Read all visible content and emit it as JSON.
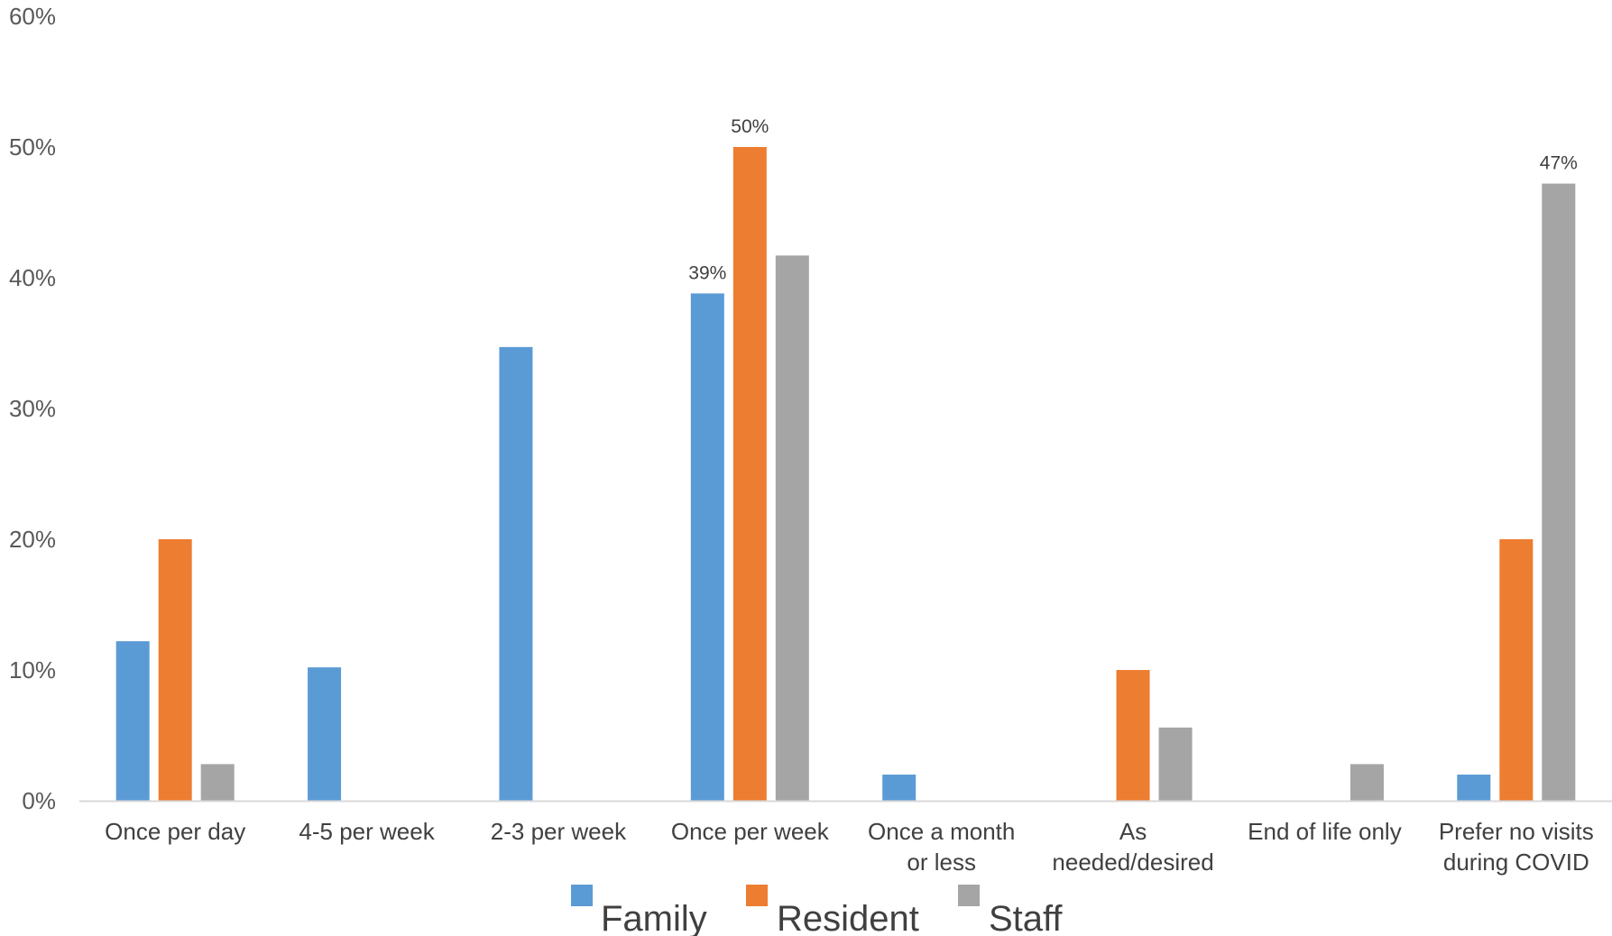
{
  "chart_data": {
    "type": "bar",
    "categories": [
      [
        "Once per day"
      ],
      [
        "4-5 per week"
      ],
      [
        "2-3 per week"
      ],
      [
        "Once per week"
      ],
      [
        "Once a month",
        "or less"
      ],
      [
        "As",
        "needed/desired"
      ],
      [
        "End of life only"
      ],
      [
        "Prefer no visits",
        "during COVID"
      ]
    ],
    "series": [
      {
        "name": "Family",
        "color": "#5b9bd5",
        "values": [
          12.2,
          10.2,
          34.7,
          38.8,
          2.0,
          0,
          0,
          2.0
        ]
      },
      {
        "name": "Resident",
        "color": "#ed7d31",
        "values": [
          20,
          0,
          0,
          50,
          0,
          10,
          0,
          20
        ]
      },
      {
        "name": "Staff",
        "color": "#a5a5a5",
        "values": [
          2.8,
          0,
          0,
          41.7,
          0,
          5.6,
          2.8,
          47.2
        ]
      }
    ],
    "data_labels": [
      {
        "series": 0,
        "category": 3,
        "text": "39%"
      },
      {
        "series": 1,
        "category": 3,
        "text": "50%"
      },
      {
        "series": 2,
        "category": 7,
        "text": "47%"
      }
    ],
    "y_ticks": [
      "0%",
      "10%",
      "20%",
      "30%",
      "40%",
      "50%",
      "60%"
    ],
    "ylim": [
      0,
      60
    ],
    "grid": false,
    "legend_position": "bottom",
    "title": "",
    "xlabel": "",
    "ylabel": ""
  }
}
